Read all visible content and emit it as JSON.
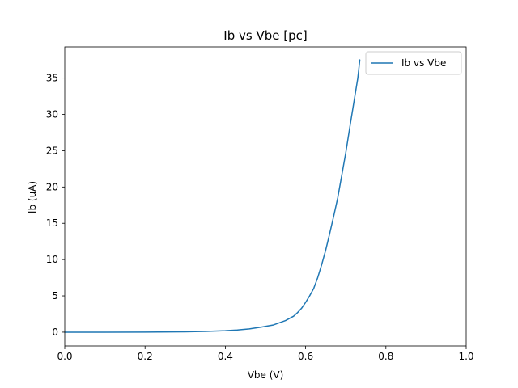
{
  "chart_data": {
    "type": "line",
    "title": "Ib vs Vbe [pc]",
    "xlabel": "Vbe (V)",
    "ylabel": "Ib (uA)",
    "xlim": [
      0.0,
      1.0
    ],
    "ylim": [
      -1.9,
      39.3
    ],
    "xticks": [
      "0.0",
      "0.2",
      "0.4",
      "0.6",
      "0.8",
      "1.0"
    ],
    "yticks": [
      "0",
      "5",
      "10",
      "15",
      "20",
      "25",
      "30",
      "35"
    ],
    "grid": false,
    "legend_position": "top-right",
    "series": [
      {
        "name": "Ib vs Vbe",
        "color": "#1f77b4",
        "x": [
          0.0,
          0.1,
          0.2,
          0.3,
          0.35,
          0.4,
          0.43,
          0.46,
          0.49,
          0.52,
          0.55,
          0.57,
          0.58,
          0.59,
          0.6,
          0.61,
          0.62,
          0.63,
          0.64,
          0.65,
          0.66,
          0.67,
          0.68,
          0.69,
          0.7,
          0.71,
          0.72,
          0.73,
          0.735
        ],
        "y": [
          0.0,
          0.0,
          0.01,
          0.05,
          0.1,
          0.2,
          0.3,
          0.45,
          0.7,
          1.0,
          1.6,
          2.2,
          2.7,
          3.3,
          4.1,
          5.0,
          6.0,
          7.5,
          9.3,
          11.3,
          13.6,
          16.0,
          18.5,
          21.6,
          24.7,
          28.2,
          31.6,
          35.0,
          37.5
        ]
      }
    ]
  }
}
